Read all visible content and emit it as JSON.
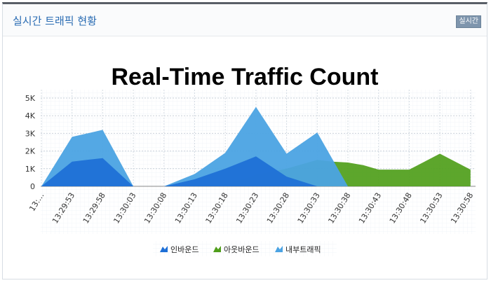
{
  "panel": {
    "title": "실시간 트래픽 현황",
    "badge": "실시간"
  },
  "chart_data": {
    "type": "area",
    "title": "Real-Time Traffic Count",
    "x": [
      "13:…",
      "13:29:53",
      "13:29:58",
      "13:30:03",
      "13:30:08",
      "13:30:13",
      "13:30:18",
      "13:30:23",
      "13:30:28",
      "13:30:33",
      "13:30:38",
      "13:30:43",
      "13:30:48",
      "13:30:53",
      "13:30:58"
    ],
    "yticks": [
      "0",
      "1K",
      "2K",
      "3K",
      "4K",
      "5K"
    ],
    "ylim": [
      0,
      5000
    ],
    "grid": true,
    "legend_position": "bottom",
    "series": [
      {
        "name": "인바운드",
        "color": "#1d6fd6",
        "points": [
          [
            0,
            0
          ],
          [
            1,
            1400
          ],
          [
            2,
            1600
          ],
          [
            3,
            0
          ],
          [
            4,
            0
          ],
          [
            5,
            400
          ],
          [
            6,
            1000
          ],
          [
            7,
            1700
          ],
          [
            8,
            550
          ],
          [
            9,
            0
          ],
          [
            10,
            0
          ],
          [
            11,
            0
          ],
          [
            12,
            0
          ],
          [
            13,
            0
          ],
          [
            14,
            0
          ]
        ]
      },
      {
        "name": "아웃바운드",
        "color": "#4f9e1a",
        "points": [
          [
            0,
            0
          ],
          [
            1,
            0
          ],
          [
            2,
            0
          ],
          [
            3,
            0
          ],
          [
            4,
            0
          ],
          [
            5,
            0
          ],
          [
            6,
            100
          ],
          [
            7,
            650
          ],
          [
            8,
            1000
          ],
          [
            9,
            1500
          ],
          [
            9.5,
            1400
          ],
          [
            10,
            1350
          ],
          [
            10.5,
            1200
          ],
          [
            11,
            950
          ],
          [
            12,
            950
          ],
          [
            12.5,
            1400
          ],
          [
            13,
            1850
          ],
          [
            14,
            950
          ]
        ]
      },
      {
        "name": "내부트래픽",
        "color": "#4ba3e3",
        "points": [
          [
            0,
            0
          ],
          [
            1,
            2800
          ],
          [
            2,
            3200
          ],
          [
            3,
            0
          ],
          [
            4,
            0
          ],
          [
            5,
            700
          ],
          [
            6,
            1900
          ],
          [
            7,
            4500
          ],
          [
            8,
            1850
          ],
          [
            9,
            3050
          ],
          [
            10,
            0
          ],
          [
            11,
            0
          ],
          [
            12,
            0
          ],
          [
            13,
            0
          ],
          [
            14,
            0
          ]
        ]
      }
    ]
  }
}
